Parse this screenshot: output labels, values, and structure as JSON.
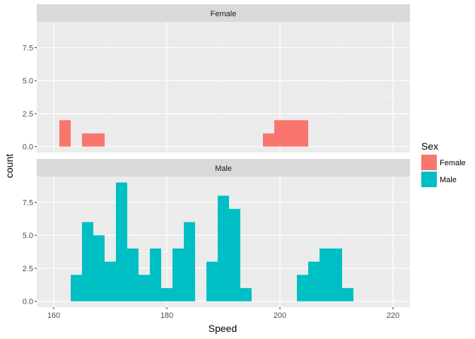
{
  "chart_data": {
    "type": "bar",
    "subtype": "faceted-histogram",
    "title": "",
    "xlabel": "Speed",
    "ylabel": "count",
    "xlim": [
      157,
      223
    ],
    "ylim": [
      -0.45,
      9.45
    ],
    "x_ticks": [
      160,
      180,
      200,
      220
    ],
    "y_ticks": [
      0,
      2.5,
      5,
      7.5
    ],
    "y_tick_labels": [
      "0.0",
      "2.5",
      "5.0",
      "7.5"
    ],
    "bin_width": 2,
    "grid": true,
    "legend": {
      "title": "Sex",
      "position": "right"
    },
    "panels": [
      {
        "label": "Female",
        "color": "#F8766D",
        "bins": [
          {
            "x0": 161,
            "x1": 163,
            "count": 2
          },
          {
            "x0": 165,
            "x1": 167,
            "count": 1
          },
          {
            "x0": 167,
            "x1": 169,
            "count": 1
          },
          {
            "x0": 197,
            "x1": 199,
            "count": 1
          },
          {
            "x0": 199,
            "x1": 201,
            "count": 2
          },
          {
            "x0": 201,
            "x1": 203,
            "count": 2
          },
          {
            "x0": 203,
            "x1": 205,
            "count": 2
          }
        ]
      },
      {
        "label": "Male",
        "color": "#00BFC4",
        "bins": [
          {
            "x0": 163,
            "x1": 165,
            "count": 2
          },
          {
            "x0": 165,
            "x1": 167,
            "count": 6
          },
          {
            "x0": 167,
            "x1": 169,
            "count": 5
          },
          {
            "x0": 169,
            "x1": 171,
            "count": 3
          },
          {
            "x0": 171,
            "x1": 173,
            "count": 9
          },
          {
            "x0": 173,
            "x1": 175,
            "count": 4
          },
          {
            "x0": 175,
            "x1": 177,
            "count": 2
          },
          {
            "x0": 177,
            "x1": 179,
            "count": 4
          },
          {
            "x0": 179,
            "x1": 181,
            "count": 1
          },
          {
            "x0": 181,
            "x1": 183,
            "count": 4
          },
          {
            "x0": 183,
            "x1": 185,
            "count": 6
          },
          {
            "x0": 187,
            "x1": 189,
            "count": 3
          },
          {
            "x0": 189,
            "x1": 191,
            "count": 8
          },
          {
            "x0": 191,
            "x1": 193,
            "count": 7
          },
          {
            "x0": 193,
            "x1": 195,
            "count": 1
          },
          {
            "x0": 203,
            "x1": 205,
            "count": 2
          },
          {
            "x0": 205,
            "x1": 207,
            "count": 3
          },
          {
            "x0": 207,
            "x1": 209,
            "count": 4
          },
          {
            "x0": 209,
            "x1": 211,
            "count": 4
          },
          {
            "x0": 211,
            "x1": 213,
            "count": 1
          }
        ]
      }
    ]
  }
}
